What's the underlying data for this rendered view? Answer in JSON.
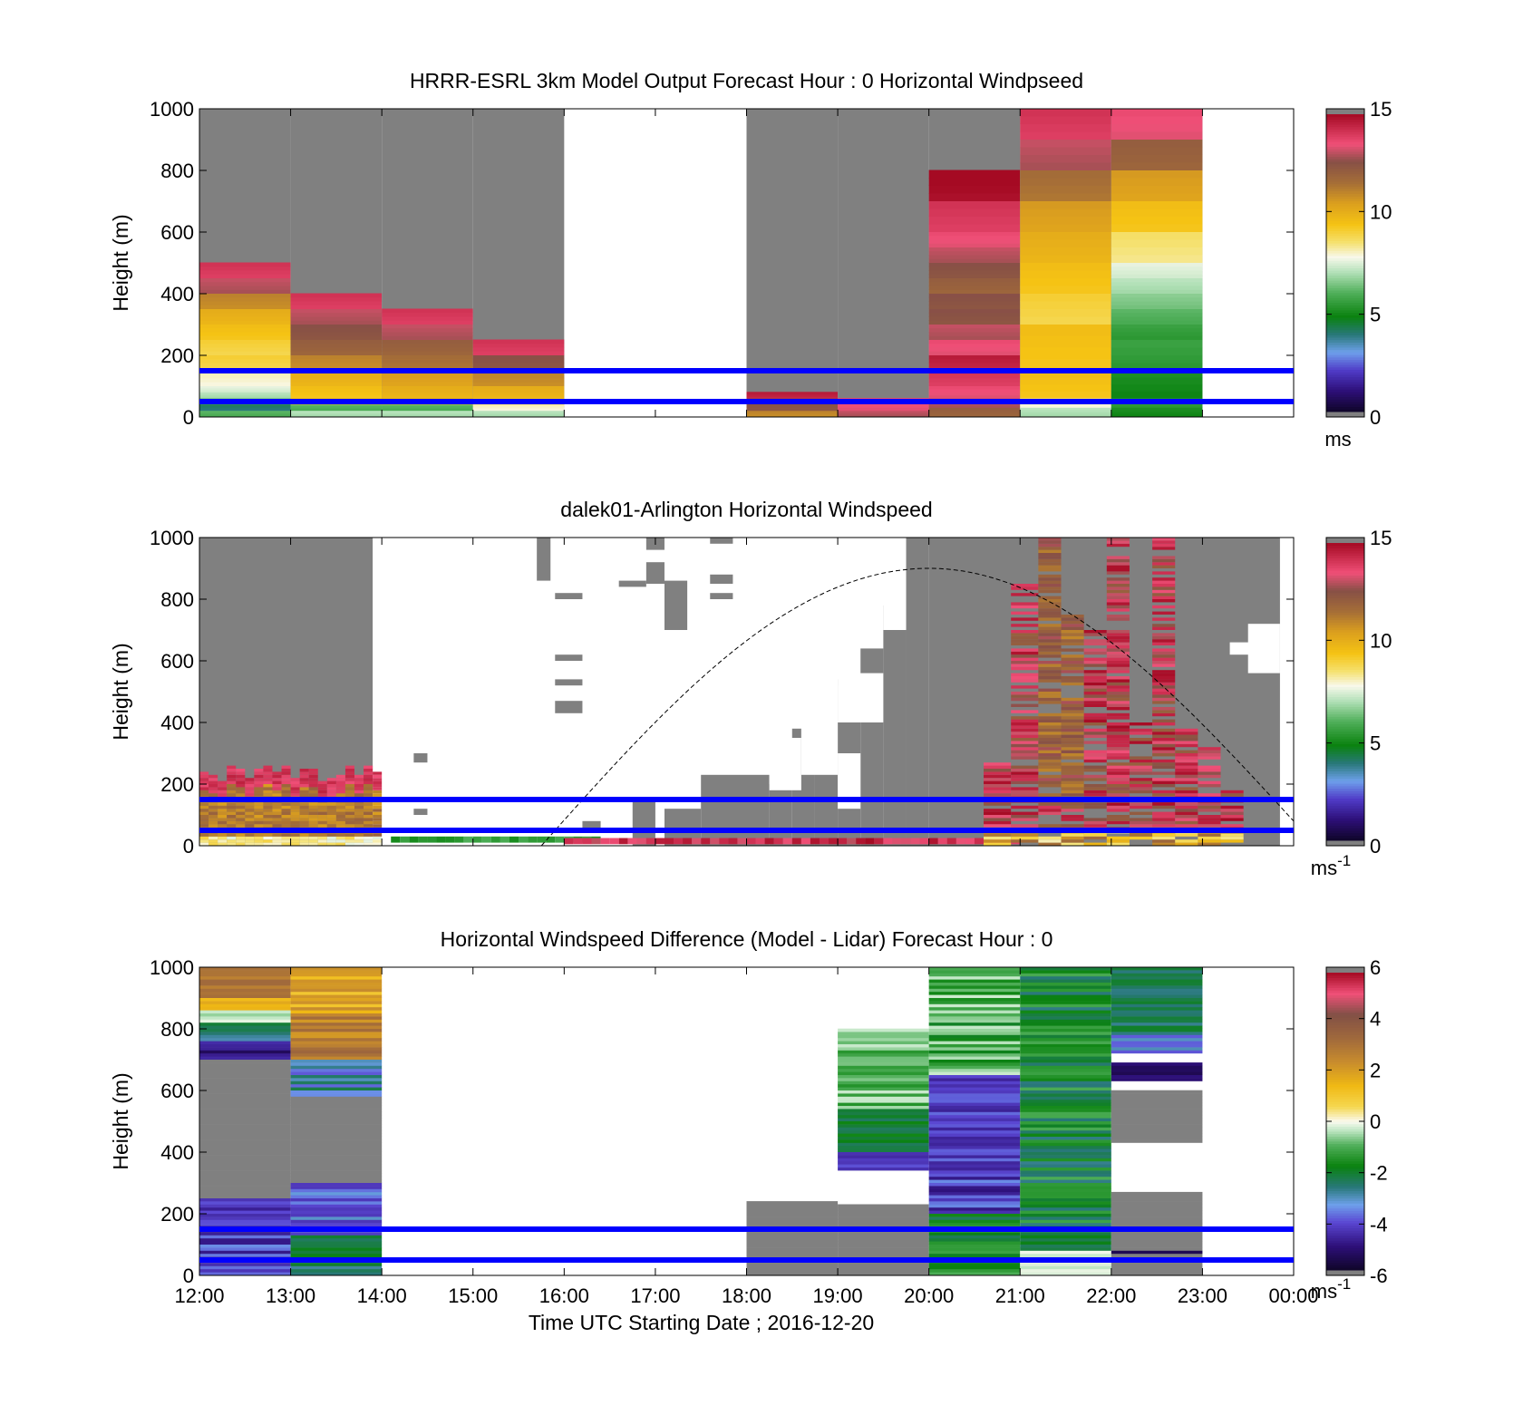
{
  "chart_data": [
    {
      "type": "heatmap",
      "title": "HRRR-ESRL 3km Model Output   Forecast Hour : 0 Horizontal Windpseed",
      "xlabel": "",
      "ylabel": "Height (m)",
      "xlim": [
        "12:00",
        "00:00"
      ],
      "ylim": [
        0,
        1000
      ],
      "yticks": [
        0,
        200,
        400,
        600,
        800,
        1000
      ],
      "colorbar": {
        "min": 0,
        "max": 15,
        "ticks": [
          0,
          5,
          10,
          15
        ],
        "unit": "ms",
        "unit_sup": ""
      },
      "hlines": [
        {
          "y": 50,
          "color": "#0000ff"
        },
        {
          "y": 150,
          "color": "#0000ff"
        }
      ],
      "columns": [
        {
          "start": "12:00",
          "end": "13:00",
          "top": 1000,
          "segments": [
            [
              0,
              20,
              6
            ],
            [
              20,
              40,
              4
            ],
            [
              40,
              60,
              6
            ],
            [
              60,
              80,
              7
            ],
            [
              80,
              100,
              7.5
            ],
            [
              100,
              150,
              8
            ],
            [
              150,
              200,
              9
            ],
            [
              200,
              250,
              9
            ],
            [
              250,
              300,
              9.5
            ],
            [
              300,
              350,
              10
            ],
            [
              350,
              400,
              11
            ],
            [
              400,
              450,
              13
            ],
            [
              450,
              500,
              14
            ]
          ]
        },
        {
          "start": "13:00",
          "end": "14:00",
          "top": 1000,
          "segments": [
            [
              0,
              20,
              7
            ],
            [
              20,
              40,
              6
            ],
            [
              40,
              60,
              10
            ],
            [
              60,
              100,
              9.5
            ],
            [
              100,
              150,
              10
            ],
            [
              150,
              200,
              11
            ],
            [
              200,
              250,
              12
            ],
            [
              250,
              300,
              12.5
            ],
            [
              300,
              350,
              13
            ],
            [
              350,
              400,
              14
            ]
          ]
        },
        {
          "start": "14:00",
          "end": "15:00",
          "top": 1000,
          "segments": [
            [
              0,
              20,
              7
            ],
            [
              20,
              40,
              6
            ],
            [
              40,
              60,
              10
            ],
            [
              60,
              100,
              10
            ],
            [
              100,
              150,
              10.5
            ],
            [
              150,
              200,
              11.5
            ],
            [
              200,
              250,
              12
            ],
            [
              250,
              300,
              13
            ],
            [
              300,
              350,
              14
            ]
          ]
        },
        {
          "start": "15:00",
          "end": "16:00",
          "top": 1000,
          "segments": [
            [
              0,
              20,
              7
            ],
            [
              20,
              40,
              8
            ],
            [
              40,
              60,
              9
            ],
            [
              60,
              100,
              10
            ],
            [
              100,
              150,
              11
            ],
            [
              150,
              200,
              12.5
            ],
            [
              200,
              250,
              14
            ]
          ]
        },
        {
          "start": "18:00",
          "end": "19:00",
          "top": 1000,
          "segments": [
            [
              0,
              20,
              11
            ],
            [
              20,
              60,
              12.5
            ],
            [
              60,
              80,
              14.5
            ]
          ]
        },
        {
          "start": "19:00",
          "end": "20:00",
          "top": 1000,
          "segments": [
            [
              0,
              20,
              13
            ],
            [
              20,
              60,
              13.5
            ]
          ]
        },
        {
          "start": "20:00",
          "end": "21:00",
          "top": 1000,
          "segments": [
            [
              0,
              30,
              12
            ],
            [
              30,
              60,
              13
            ],
            [
              60,
              100,
              13.5
            ],
            [
              100,
              150,
              14
            ],
            [
              150,
              200,
              14.5
            ],
            [
              200,
              250,
              13.5
            ],
            [
              250,
              300,
              13
            ],
            [
              300,
              350,
              12.5
            ],
            [
              350,
              400,
              12.5
            ],
            [
              400,
              450,
              12
            ],
            [
              450,
              500,
              12.5
            ],
            [
              500,
              550,
              13
            ],
            [
              550,
              600,
              13.5
            ],
            [
              600,
              700,
              14
            ],
            [
              700,
              800,
              15
            ]
          ]
        },
        {
          "start": "21:00",
          "end": "22:00",
          "top": 1000,
          "segments": [
            [
              0,
              30,
              7
            ],
            [
              30,
              60,
              8
            ],
            [
              60,
              150,
              9.5
            ],
            [
              150,
              300,
              9.5
            ],
            [
              300,
              400,
              9
            ],
            [
              400,
              500,
              9.5
            ],
            [
              500,
              600,
              10
            ],
            [
              600,
              700,
              10.5
            ],
            [
              700,
              800,
              11.5
            ],
            [
              800,
              900,
              13
            ],
            [
              900,
              1000,
              14
            ]
          ]
        },
        {
          "start": "22:00",
          "end": "23:00",
          "top": 1000,
          "segments": [
            [
              0,
              30,
              5
            ],
            [
              30,
              60,
              5.5
            ],
            [
              60,
              150,
              5
            ],
            [
              150,
              250,
              5.5
            ],
            [
              250,
              300,
              5.5
            ],
            [
              300,
              350,
              6
            ],
            [
              350,
              400,
              6.5
            ],
            [
              400,
              450,
              7
            ],
            [
              450,
              500,
              7.5
            ],
            [
              500,
              600,
              8.5
            ],
            [
              600,
              700,
              9.5
            ],
            [
              700,
              800,
              10.5
            ],
            [
              800,
              900,
              12
            ],
            [
              900,
              1000,
              13.5
            ]
          ]
        }
      ]
    },
    {
      "type": "heatmap",
      "title": "dalek01-Arlington  Horizontal Windspeed",
      "xlabel": "",
      "ylabel": "Height (m)",
      "xlim": [
        "12:00",
        "00:00"
      ],
      "ylim": [
        0,
        1000
      ],
      "yticks": [
        0,
        200,
        400,
        600,
        800,
        1000
      ],
      "colorbar": {
        "min": 0,
        "max": 15,
        "ticks": [
          0,
          5,
          10,
          15
        ],
        "unit": "ms",
        "unit_sup": "-1"
      },
      "hlines": [
        {
          "y": 50,
          "color": "#0000ff"
        },
        {
          "y": 150,
          "color": "#0000ff"
        }
      ],
      "curve": {
        "style": "dashed",
        "start": [
          "15:45",
          0
        ],
        "peak": [
          "20:00",
          900
        ],
        "end": [
          "00:00",
          80
        ]
      }
    },
    {
      "type": "heatmap",
      "title": "Horizontal Windspeed Difference (Model - Lidar) Forecast Hour : 0",
      "xlabel": "Time UTC  Starting Date ; 2016-12-20",
      "ylabel": "Height (m)",
      "xlim": [
        "12:00",
        "00:00"
      ],
      "xticks": [
        "12:00",
        "13:00",
        "14:00",
        "15:00",
        "16:00",
        "17:00",
        "18:00",
        "19:00",
        "20:00",
        "21:00",
        "22:00",
        "23:00",
        "00:00"
      ],
      "ylim": [
        0,
        1000
      ],
      "yticks": [
        0,
        200,
        400,
        600,
        800,
        1000
      ],
      "colorbar": {
        "min": -6,
        "max": 6,
        "ticks": [
          -6,
          -4,
          -2,
          0,
          2,
          4,
          6
        ],
        "unit": "ms",
        "unit_sup": "-1"
      },
      "hlines": [
        {
          "y": 50,
          "color": "#0000ff"
        },
        {
          "y": 150,
          "color": "#0000ff"
        }
      ]
    }
  ]
}
